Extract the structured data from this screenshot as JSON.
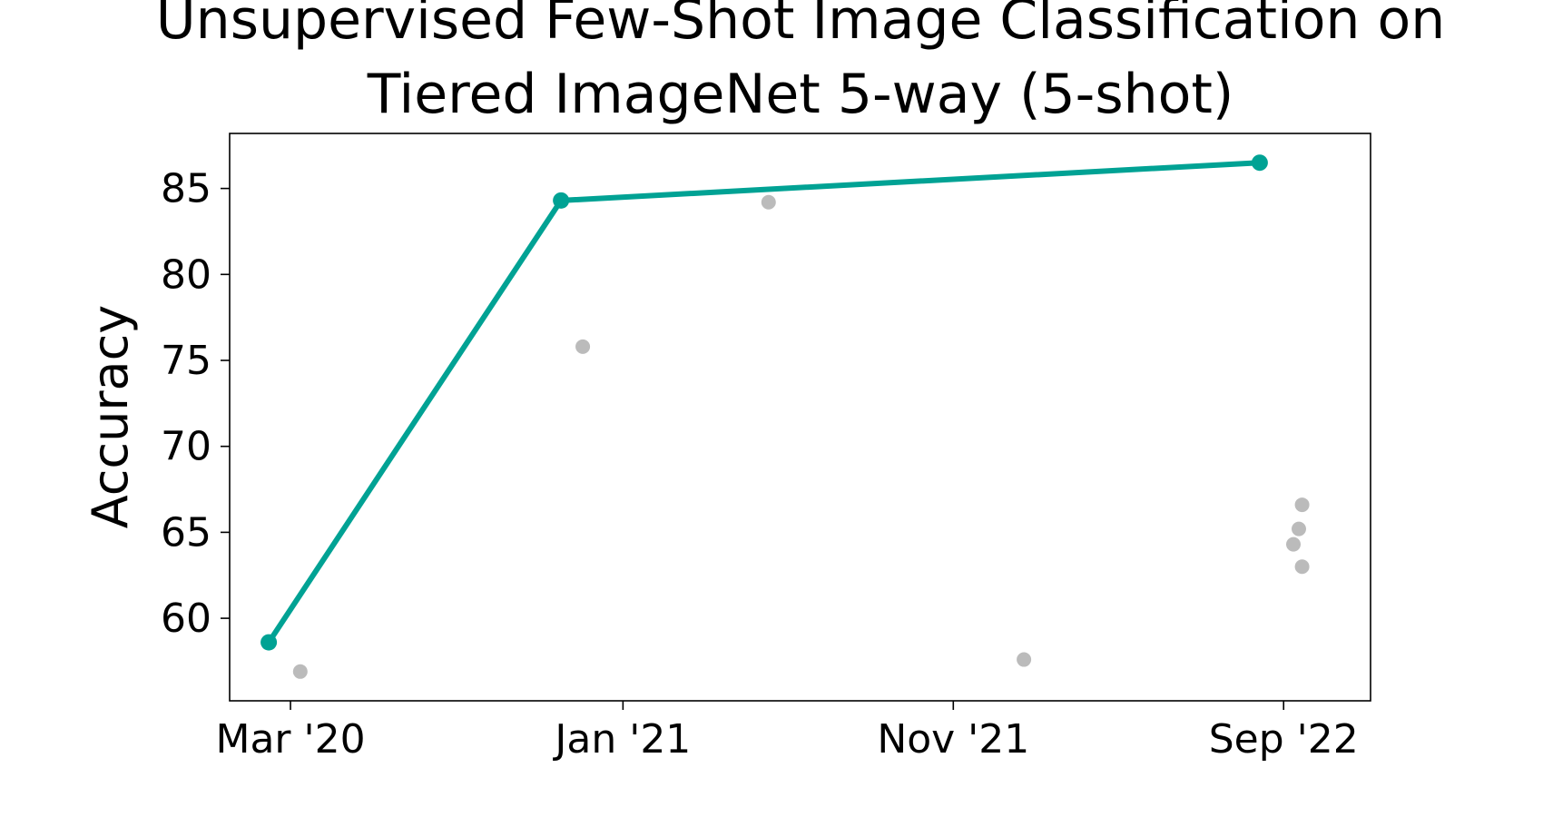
{
  "chart_data": {
    "type": "scatter",
    "title_lines": [
      "Unsupervised Few-Shot Image Classification on",
      "Tiered ImageNet 5-way (5-shot)"
    ],
    "xlabel": "",
    "ylabel": "Accuracy",
    "x_ticks": [
      "2020-03-01",
      "2021-01-01",
      "2021-11-01",
      "2022-09-01"
    ],
    "x_tick_labels": [
      "Mar '20",
      "Jan '21",
      "Nov '21",
      "Sep '22"
    ],
    "xlim": [
      "2020-01-05",
      "2022-11-20"
    ],
    "y_ticks": [
      60,
      65,
      70,
      75,
      80,
      85
    ],
    "ylim": [
      55.2,
      88.2
    ],
    "grid": false,
    "series": [
      {
        "type": "line",
        "color": "#00a294",
        "points": [
          {
            "x": "2020-02-10",
            "y": 58.6
          },
          {
            "x": "2020-11-05",
            "y": 84.3
          },
          {
            "x": "2022-08-10",
            "y": 86.5
          }
        ]
      },
      {
        "type": "scatter",
        "color": "#bbbbbb",
        "points": [
          {
            "x": "2020-03-10",
            "y": 56.9
          },
          {
            "x": "2020-11-25",
            "y": 75.8
          },
          {
            "x": "2021-05-15",
            "y": 84.2
          },
          {
            "x": "2022-01-05",
            "y": 57.6
          },
          {
            "x": "2022-09-10",
            "y": 64.3
          },
          {
            "x": "2022-09-15",
            "y": 65.2
          },
          {
            "x": "2022-09-18",
            "y": 66.6
          },
          {
            "x": "2022-09-18",
            "y": 63.0
          }
        ]
      }
    ]
  }
}
